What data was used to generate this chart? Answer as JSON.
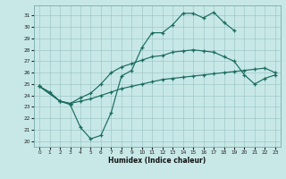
{
  "xlabel": "Humidex (Indice chaleur)",
  "background_color": "#c8e8e8",
  "grid_color": "#a0c8c8",
  "line_color": "#1a6b5e",
  "xlim": [
    -0.5,
    23.5
  ],
  "ylim": [
    19.5,
    31.9
  ],
  "xticks": [
    0,
    1,
    2,
    3,
    4,
    5,
    6,
    7,
    8,
    9,
    10,
    11,
    12,
    13,
    14,
    15,
    16,
    17,
    18,
    19,
    20,
    21,
    22,
    23
  ],
  "yticks": [
    20,
    21,
    22,
    23,
    24,
    25,
    26,
    27,
    28,
    29,
    30,
    31
  ],
  "line1_x": [
    0,
    1,
    2,
    3,
    4,
    5,
    6,
    7,
    8,
    9,
    10,
    11,
    12,
    13,
    14,
    15,
    16,
    17,
    18,
    19
  ],
  "line1_y": [
    24.8,
    24.3,
    23.5,
    23.2,
    21.2,
    20.2,
    20.5,
    22.5,
    25.7,
    26.2,
    28.2,
    29.5,
    29.5,
    30.2,
    31.2,
    31.2,
    30.8,
    31.3,
    30.4,
    29.7
  ],
  "line2_x": [
    0,
    2,
    3,
    4,
    5,
    6,
    7,
    8,
    9,
    10,
    11,
    12,
    13,
    14,
    15,
    16,
    17,
    18,
    19,
    20,
    21,
    22,
    23
  ],
  "line2_y": [
    24.8,
    23.5,
    23.3,
    23.8,
    24.2,
    25.0,
    26.0,
    26.5,
    26.8,
    27.1,
    27.4,
    27.5,
    27.8,
    27.9,
    28.0,
    27.9,
    27.8,
    27.4,
    27.0,
    25.8,
    25.0,
    25.5,
    25.8
  ],
  "line3_x": [
    0,
    2,
    3,
    4,
    5,
    6,
    7,
    8,
    9,
    10,
    11,
    12,
    13,
    14,
    15,
    16,
    17,
    18,
    19,
    20,
    21,
    22,
    23
  ],
  "line3_y": [
    24.8,
    23.5,
    23.3,
    23.5,
    23.7,
    24.0,
    24.3,
    24.6,
    24.8,
    25.0,
    25.2,
    25.4,
    25.5,
    25.6,
    25.7,
    25.8,
    25.9,
    26.0,
    26.1,
    26.2,
    26.3,
    26.4,
    26.0
  ]
}
